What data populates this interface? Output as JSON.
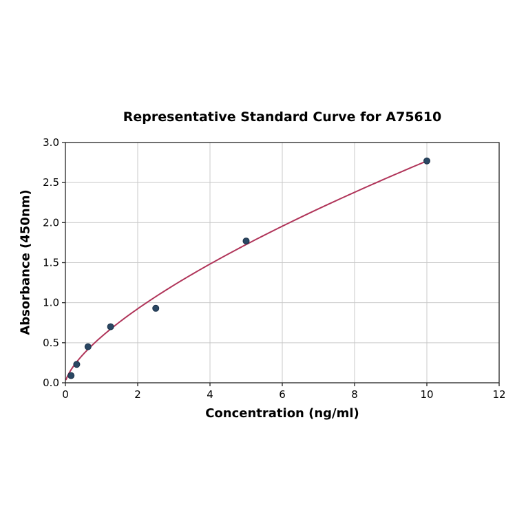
{
  "chart_data": {
    "type": "scatter",
    "title": "Representative Standard Curve for A75610",
    "xlabel": "Concentration (ng/ml)",
    "ylabel": "Absorbance (450nm)",
    "xlim": [
      0,
      12
    ],
    "ylim": [
      0.0,
      3.0
    ],
    "x_ticks": [
      0,
      2,
      4,
      6,
      8,
      10,
      12
    ],
    "x_tick_labels": [
      "0",
      "2",
      "4",
      "6",
      "8",
      "10",
      "12"
    ],
    "y_ticks": [
      0.0,
      0.5,
      1.0,
      1.5,
      2.0,
      2.5,
      3.0
    ],
    "y_tick_labels": [
      "0.0",
      "0.5",
      "1.0",
      "1.5",
      "2.0",
      "2.5",
      "3.0"
    ],
    "grid": true,
    "legend": "none",
    "points": [
      {
        "x": 0.156,
        "y": 0.09
      },
      {
        "x": 0.3125,
        "y": 0.23
      },
      {
        "x": 0.625,
        "y": 0.45
      },
      {
        "x": 1.25,
        "y": 0.7
      },
      {
        "x": 2.5,
        "y": 0.93
      },
      {
        "x": 5,
        "y": 1.77
      },
      {
        "x": 10,
        "y": 2.77
      }
    ],
    "trendline": {
      "type": "power",
      "a": 0.576,
      "b": 0.682,
      "x_start": 0.02,
      "x_end": 10
    },
    "colors": {
      "point_fill": "#2a4763",
      "point_edge": "#1b3048",
      "curve": "#b03459",
      "grid": "#c9c9c9",
      "spine": "#222222",
      "text": "#000000"
    }
  }
}
